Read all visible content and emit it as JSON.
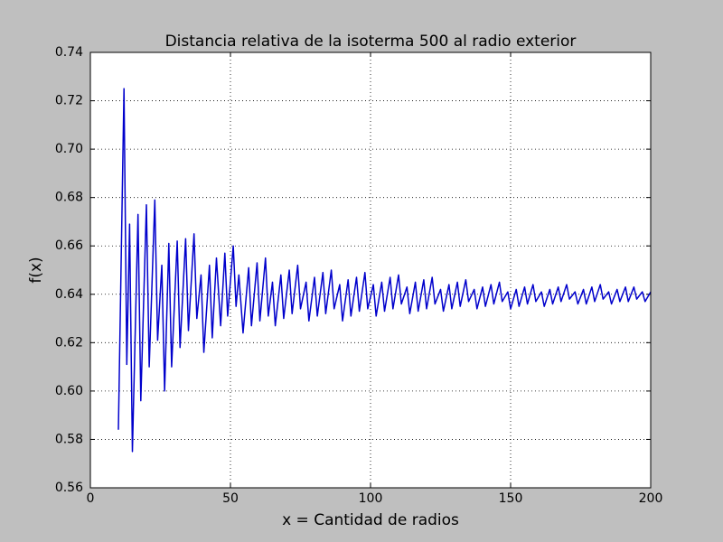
{
  "chart_data": {
    "type": "line",
    "title": "Distancia relativa de la isoterma 500 al radio exterior",
    "xlabel": "x = Cantidad de radios",
    "ylabel": "f(x)",
    "color": "#0000cc",
    "grid": true,
    "xlim": [
      0,
      200
    ],
    "xticks": [
      0,
      50,
      100,
      150,
      200
    ],
    "ylim": [
      0.56,
      0.74
    ],
    "yticks": [
      0.56,
      0.58,
      {
        "value": 0.6,
        "label": "0.60"
      },
      0.62,
      0.64,
      0.66,
      0.68,
      {
        "value": 0.7,
        "label": "0.70"
      },
      0.72,
      0.74
    ],
    "x": [
      10,
      12,
      13,
      14,
      15,
      17,
      18,
      20,
      21,
      23,
      24,
      25.5,
      26.5,
      28,
      29,
      31,
      32,
      34,
      35,
      37,
      38,
      39.5,
      40.5,
      42.5,
      43.5,
      45,
      46.5,
      48,
      49,
      51,
      52,
      53,
      54.5,
      56.5,
      57.5,
      59.5,
      60.5,
      62.5,
      63.5,
      65,
      66,
      68,
      69,
      71,
      72,
      74,
      75,
      77,
      78,
      80,
      81,
      83,
      84,
      86,
      87,
      89,
      90,
      92,
      93,
      95,
      96,
      98,
      99,
      101,
      102,
      104,
      105,
      107,
      108,
      110,
      111,
      113,
      114,
      116,
      117,
      119,
      120,
      122,
      123,
      125,
      126,
      128,
      129,
      131,
      132,
      134,
      135,
      137,
      138,
      140,
      141,
      143,
      144,
      146,
      147,
      149,
      150,
      152,
      153,
      155,
      156,
      158,
      159,
      161,
      162,
      164,
      165,
      167,
      168,
      170,
      171,
      173,
      174,
      176,
      177,
      179,
      180,
      182,
      183,
      185,
      186,
      188,
      189,
      191,
      192,
      194,
      195,
      197,
      198,
      200
    ],
    "values": [
      0.584,
      0.725,
      0.611,
      0.669,
      0.575,
      0.673,
      0.596,
      0.677,
      0.61,
      0.679,
      0.621,
      0.652,
      0.6,
      0.661,
      0.61,
      0.662,
      0.618,
      0.663,
      0.625,
      0.665,
      0.63,
      0.648,
      0.616,
      0.652,
      0.622,
      0.655,
      0.627,
      0.657,
      0.631,
      0.66,
      0.635,
      0.648,
      0.624,
      0.651,
      0.627,
      0.653,
      0.629,
      0.655,
      0.631,
      0.645,
      0.627,
      0.648,
      0.63,
      0.65,
      0.632,
      0.652,
      0.634,
      0.645,
      0.629,
      0.647,
      0.631,
      0.649,
      0.632,
      0.65,
      0.634,
      0.644,
      0.629,
      0.646,
      0.631,
      0.647,
      0.633,
      0.649,
      0.634,
      0.644,
      0.631,
      0.645,
      0.633,
      0.647,
      0.634,
      0.648,
      0.636,
      0.643,
      0.632,
      0.645,
      0.633,
      0.646,
      0.634,
      0.647,
      0.636,
      0.642,
      0.633,
      0.644,
      0.634,
      0.645,
      0.635,
      0.646,
      0.637,
      0.642,
      0.634,
      0.643,
      0.635,
      0.644,
      0.636,
      0.645,
      0.637,
      0.641,
      0.634,
      0.642,
      0.635,
      0.643,
      0.636,
      0.644,
      0.637,
      0.641,
      0.635,
      0.642,
      0.636,
      0.643,
      0.637,
      0.644,
      0.638,
      0.641,
      0.636,
      0.642,
      0.636,
      0.643,
      0.637,
      0.644,
      0.638,
      0.641,
      0.636,
      0.642,
      0.637,
      0.643,
      0.637,
      0.643,
      0.638,
      0.641,
      0.637,
      0.641
    ]
  }
}
